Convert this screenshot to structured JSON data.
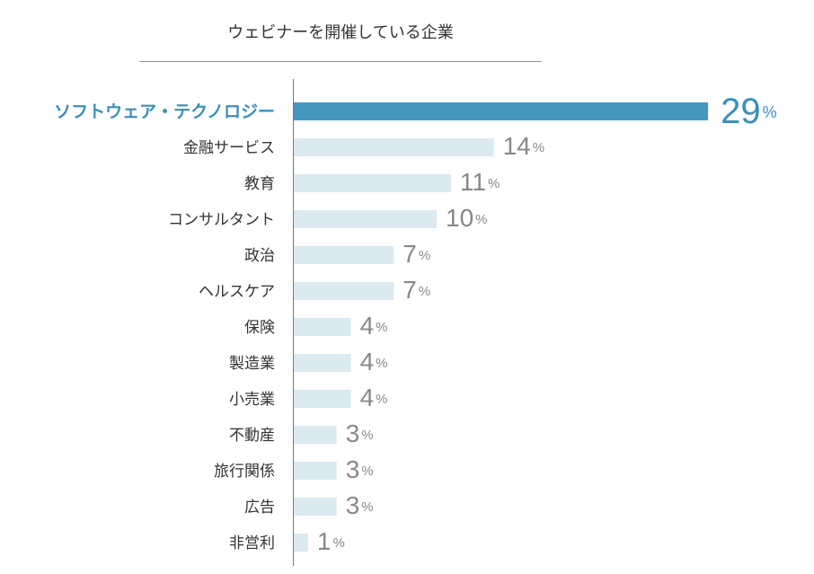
{
  "chart_data": {
    "type": "bar",
    "orientation": "horizontal",
    "title": "ウェビナーを開催している企業",
    "categories": [
      "ソフトウェア・テクノロジー",
      "金融サービス",
      "教育",
      "コンサルタント",
      "政治",
      "ヘルスケア",
      "保険",
      "製造業",
      "小売業",
      "不動産",
      "旅行関係",
      "広告",
      "非営利"
    ],
    "values": [
      29,
      14,
      11,
      10,
      7,
      7,
      4,
      4,
      4,
      3,
      3,
      3,
      1
    ],
    "value_suffix": "%",
    "highlight_index": 0,
    "xlim": [
      0,
      29
    ],
    "grid": false,
    "legend": "none"
  },
  "colors": {
    "highlight_bar": "#4497bf",
    "highlight_text": "#3a8fba",
    "bar": "#dbe9f1",
    "label": "#333333",
    "value": "#888888",
    "axis": "#777777"
  }
}
